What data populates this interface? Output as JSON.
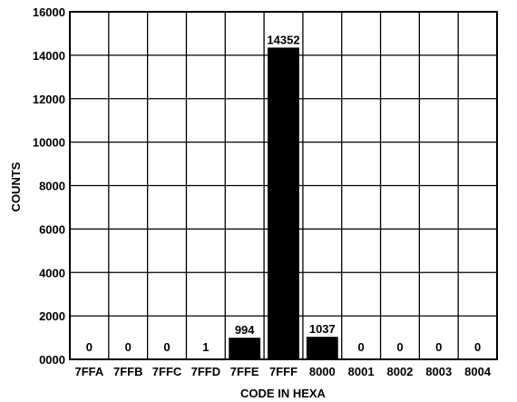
{
  "chart_data": {
    "type": "bar",
    "title": "",
    "xlabel": "CODE IN HEXA",
    "ylabel": "COUNTS",
    "categories": [
      "7FFA",
      "7FFB",
      "7FFC",
      "7FFD",
      "7FFE",
      "7FFF",
      "8000",
      "8001",
      "8002",
      "8003",
      "8004"
    ],
    "values": [
      0,
      0,
      0,
      1,
      994,
      14352,
      1037,
      0,
      0,
      0,
      0
    ],
    "data_labels": [
      "0",
      "0",
      "0",
      "1",
      "994",
      "14352",
      "1037",
      "0",
      "0",
      "0",
      "0"
    ],
    "ylim": [
      0,
      16000
    ],
    "yticks": [
      0,
      2000,
      4000,
      6000,
      8000,
      10000,
      12000,
      14000,
      16000
    ],
    "ytick_labels": [
      "0000",
      "2000",
      "4000",
      "6000",
      "8000",
      "10000",
      "12000",
      "14000",
      "16000"
    ],
    "grid": true,
    "bar_color": "#000000",
    "grid_color": "#000000"
  }
}
